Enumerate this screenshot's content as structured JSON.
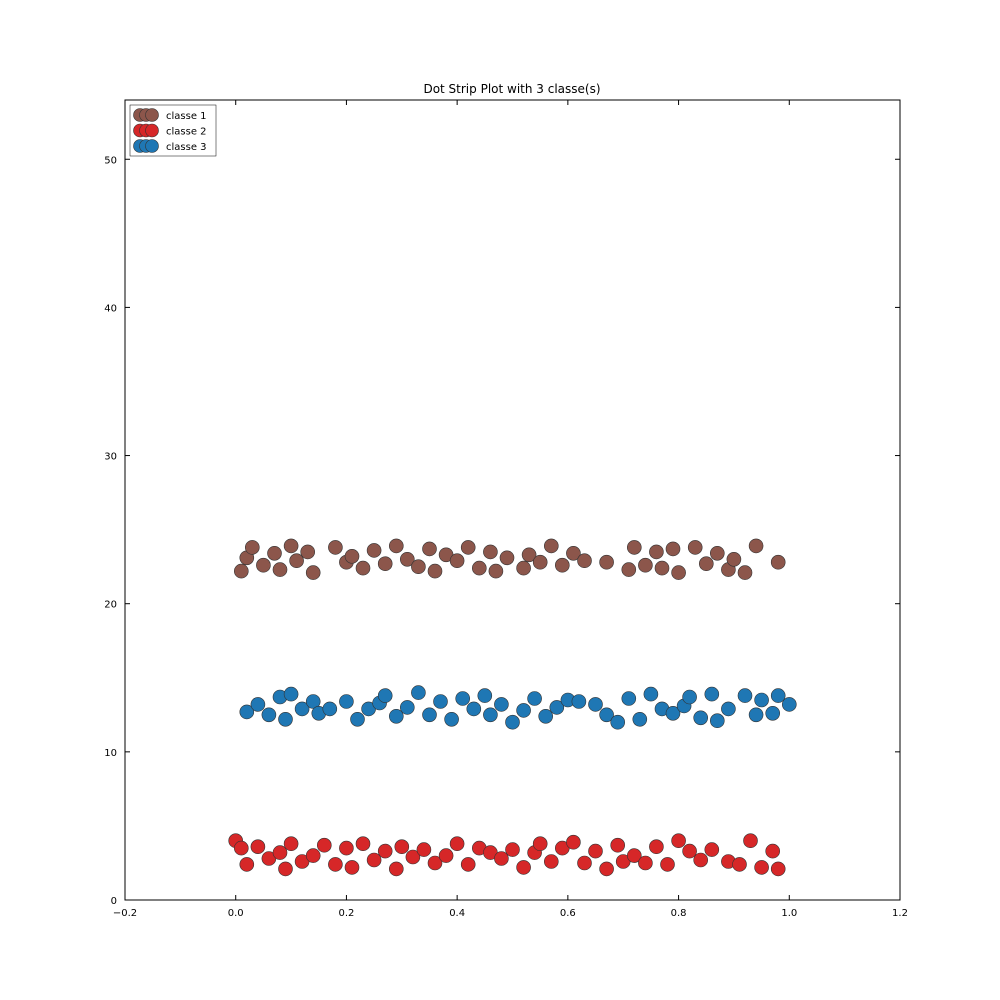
{
  "chart_data": {
    "type": "scatter",
    "title": "Dot Strip Plot with 3 classe(s)",
    "xlabel": "",
    "ylabel": "",
    "xlim": [
      -0.2,
      1.2
    ],
    "ylim": [
      0,
      54
    ],
    "xticks": [
      "−0.2",
      "0.0",
      "0.2",
      "0.4",
      "0.6",
      "0.8",
      "1.0",
      "1.2"
    ],
    "xtick_values": [
      -0.2,
      0.0,
      0.2,
      0.4,
      0.6,
      0.8,
      1.0,
      1.2
    ],
    "yticks": [
      "0",
      "10",
      "20",
      "30",
      "40",
      "50"
    ],
    "ytick_values": [
      0,
      10,
      20,
      30,
      40,
      50
    ],
    "grid": false,
    "legend_position": "top-left",
    "series": [
      {
        "name": "classe 1",
        "color": "#8c564b",
        "points": [
          [
            0.01,
            22.2
          ],
          [
            0.02,
            23.1
          ],
          [
            0.03,
            23.8
          ],
          [
            0.05,
            22.6
          ],
          [
            0.07,
            23.4
          ],
          [
            0.08,
            22.3
          ],
          [
            0.1,
            23.9
          ],
          [
            0.11,
            22.9
          ],
          [
            0.13,
            23.5
          ],
          [
            0.14,
            22.1
          ],
          [
            0.18,
            23.8
          ],
          [
            0.2,
            22.8
          ],
          [
            0.21,
            23.2
          ],
          [
            0.23,
            22.4
          ],
          [
            0.25,
            23.6
          ],
          [
            0.27,
            22.7
          ],
          [
            0.29,
            23.9
          ],
          [
            0.31,
            23.0
          ],
          [
            0.33,
            22.5
          ],
          [
            0.35,
            23.7
          ],
          [
            0.36,
            22.2
          ],
          [
            0.38,
            23.3
          ],
          [
            0.4,
            22.9
          ],
          [
            0.42,
            23.8
          ],
          [
            0.44,
            22.4
          ],
          [
            0.46,
            23.5
          ],
          [
            0.47,
            22.2
          ],
          [
            0.49,
            23.1
          ],
          [
            0.52,
            22.4
          ],
          [
            0.53,
            23.3
          ],
          [
            0.55,
            22.8
          ],
          [
            0.57,
            23.9
          ],
          [
            0.59,
            22.6
          ],
          [
            0.61,
            23.4
          ],
          [
            0.63,
            22.9
          ],
          [
            0.67,
            22.8
          ],
          [
            0.71,
            22.3
          ],
          [
            0.72,
            23.8
          ],
          [
            0.74,
            22.6
          ],
          [
            0.76,
            23.5
          ],
          [
            0.77,
            22.4
          ],
          [
            0.79,
            23.7
          ],
          [
            0.8,
            22.1
          ],
          [
            0.83,
            23.8
          ],
          [
            0.85,
            22.7
          ],
          [
            0.87,
            23.4
          ],
          [
            0.89,
            22.3
          ],
          [
            0.9,
            23.0
          ],
          [
            0.92,
            22.1
          ],
          [
            0.94,
            23.9
          ],
          [
            0.98,
            22.8
          ]
        ]
      },
      {
        "name": "classe 2",
        "color": "#d62728",
        "points": [
          [
            0.0,
            4.0
          ],
          [
            0.01,
            3.5
          ],
          [
            0.02,
            2.4
          ],
          [
            0.04,
            3.6
          ],
          [
            0.06,
            2.8
          ],
          [
            0.08,
            3.2
          ],
          [
            0.09,
            2.1
          ],
          [
            0.1,
            3.8
          ],
          [
            0.12,
            2.6
          ],
          [
            0.14,
            3.0
          ],
          [
            0.16,
            3.7
          ],
          [
            0.18,
            2.4
          ],
          [
            0.2,
            3.5
          ],
          [
            0.21,
            2.2
          ],
          [
            0.23,
            3.8
          ],
          [
            0.25,
            2.7
          ],
          [
            0.27,
            3.3
          ],
          [
            0.29,
            2.1
          ],
          [
            0.3,
            3.6
          ],
          [
            0.32,
            2.9
          ],
          [
            0.34,
            3.4
          ],
          [
            0.36,
            2.5
          ],
          [
            0.38,
            3.0
          ],
          [
            0.4,
            3.8
          ],
          [
            0.42,
            2.4
          ],
          [
            0.44,
            3.5
          ],
          [
            0.46,
            3.2
          ],
          [
            0.48,
            2.8
          ],
          [
            0.5,
            3.4
          ],
          [
            0.52,
            2.2
          ],
          [
            0.54,
            3.2
          ],
          [
            0.55,
            3.8
          ],
          [
            0.57,
            2.6
          ],
          [
            0.59,
            3.5
          ],
          [
            0.61,
            3.9
          ],
          [
            0.63,
            2.5
          ],
          [
            0.65,
            3.3
          ],
          [
            0.67,
            2.1
          ],
          [
            0.69,
            3.7
          ],
          [
            0.7,
            2.6
          ],
          [
            0.72,
            3.0
          ],
          [
            0.74,
            2.5
          ],
          [
            0.76,
            3.6
          ],
          [
            0.78,
            2.4
          ],
          [
            0.8,
            4.0
          ],
          [
            0.82,
            3.3
          ],
          [
            0.84,
            2.7
          ],
          [
            0.86,
            3.4
          ],
          [
            0.89,
            2.6
          ],
          [
            0.91,
            2.4
          ],
          [
            0.93,
            4.0
          ],
          [
            0.95,
            2.2
          ],
          [
            0.97,
            3.3
          ],
          [
            0.98,
            2.1
          ]
        ]
      },
      {
        "name": "classe 3",
        "color": "#1f77b4",
        "points": [
          [
            0.02,
            12.7
          ],
          [
            0.04,
            13.2
          ],
          [
            0.06,
            12.5
          ],
          [
            0.08,
            13.7
          ],
          [
            0.09,
            12.2
          ],
          [
            0.1,
            13.9
          ],
          [
            0.12,
            12.9
          ],
          [
            0.14,
            13.4
          ],
          [
            0.15,
            12.6
          ],
          [
            0.17,
            12.9
          ],
          [
            0.2,
            13.4
          ],
          [
            0.22,
            12.2
          ],
          [
            0.24,
            12.9
          ],
          [
            0.26,
            13.3
          ],
          [
            0.27,
            13.8
          ],
          [
            0.29,
            12.4
          ],
          [
            0.31,
            13.0
          ],
          [
            0.33,
            14.0
          ],
          [
            0.35,
            12.5
          ],
          [
            0.37,
            13.4
          ],
          [
            0.39,
            12.2
          ],
          [
            0.41,
            13.6
          ],
          [
            0.43,
            12.9
          ],
          [
            0.45,
            13.8
          ],
          [
            0.46,
            12.5
          ],
          [
            0.48,
            13.2
          ],
          [
            0.5,
            12.0
          ],
          [
            0.52,
            12.8
          ],
          [
            0.54,
            13.6
          ],
          [
            0.56,
            12.4
          ],
          [
            0.58,
            13.0
          ],
          [
            0.6,
            13.5
          ],
          [
            0.62,
            13.4
          ],
          [
            0.65,
            13.2
          ],
          [
            0.67,
            12.5
          ],
          [
            0.69,
            12.0
          ],
          [
            0.71,
            13.6
          ],
          [
            0.73,
            12.2
          ],
          [
            0.75,
            13.9
          ],
          [
            0.77,
            12.9
          ],
          [
            0.79,
            12.6
          ],
          [
            0.81,
            13.1
          ],
          [
            0.82,
            13.7
          ],
          [
            0.84,
            12.3
          ],
          [
            0.86,
            13.9
          ],
          [
            0.87,
            12.1
          ],
          [
            0.89,
            12.9
          ],
          [
            0.92,
            13.8
          ],
          [
            0.94,
            12.5
          ],
          [
            0.95,
            13.5
          ],
          [
            0.97,
            12.6
          ],
          [
            0.98,
            13.8
          ],
          [
            1.0,
            13.2
          ]
        ]
      }
    ]
  }
}
